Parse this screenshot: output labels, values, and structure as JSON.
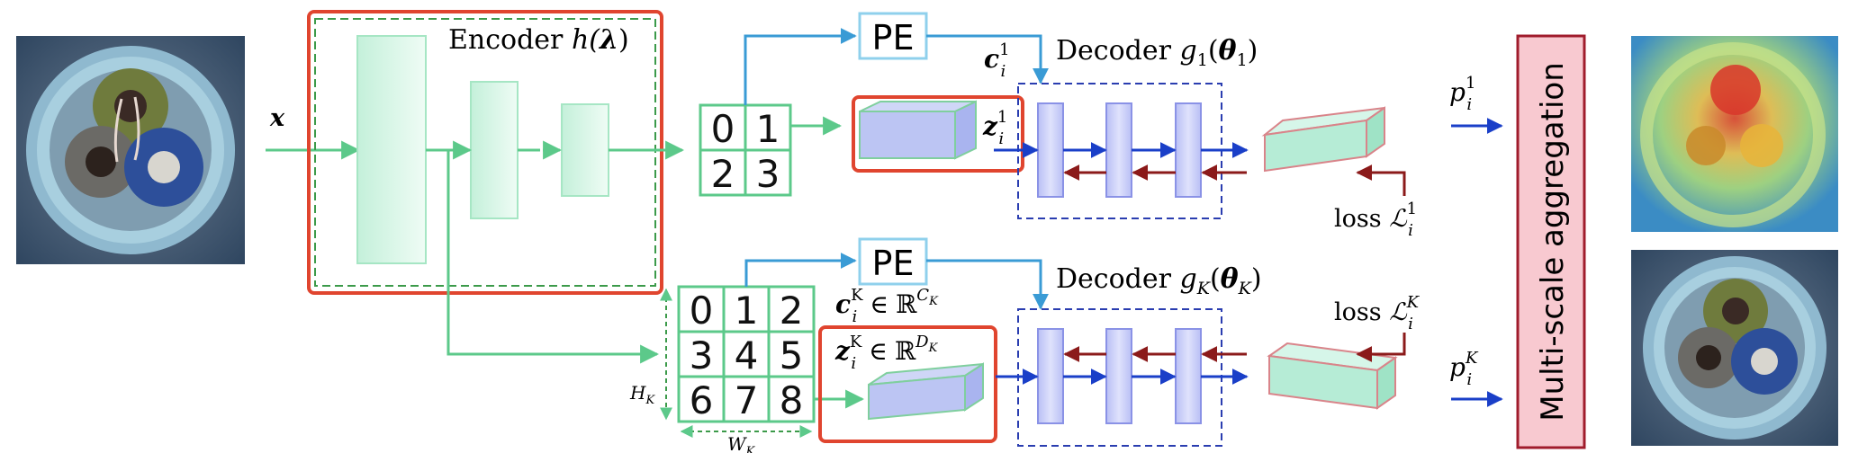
{
  "input_symbol": "x",
  "encoder": {
    "label": "Encoder",
    "func": "h(",
    "param": "λ",
    "close": ")"
  },
  "pe_top": "PE",
  "pe_bottom": "PE",
  "grid_top": [
    "0",
    "1",
    "2",
    "3"
  ],
  "grid_bottom": [
    "0",
    "1",
    "2",
    "3",
    "4",
    "5",
    "6",
    "7",
    "8"
  ],
  "grid_dims": {
    "h_main": "H",
    "h_sub": "K",
    "w_main": "W",
    "w_sub": "K"
  },
  "decoder_top": {
    "label": "Decoder",
    "g": "g",
    "g_sub": "1",
    "theta_sub": "1"
  },
  "decoder_bottom": {
    "label": "Decoder",
    "g": "g",
    "g_sub": "K",
    "theta_sub": "K"
  },
  "c_top": {
    "main": "c",
    "sup": "1",
    "sub": "i"
  },
  "z_top": {
    "main": "z",
    "sup": "1",
    "sub": "i"
  },
  "c_bottom": {
    "main": "c",
    "sup": "K",
    "sub": "i",
    "in": "∈",
    "space": "ℝ",
    "dim": "C",
    "dim_sub": "K"
  },
  "z_bottom": {
    "main": "z",
    "sup": "K",
    "sub": "i",
    "in": "∈",
    "space": "ℝ",
    "dim": "D",
    "dim_sub": "K"
  },
  "loss_top": {
    "word": "loss",
    "sym": "ℒ",
    "sup": "1",
    "sub": "i"
  },
  "loss_bottom": {
    "word": "loss",
    "sym": "ℒ",
    "sup": "K",
    "sub": "i"
  },
  "p_top": {
    "main": "p",
    "sup": "1",
    "sub": "i"
  },
  "p_bottom": {
    "main": "p",
    "sup": "K",
    "sub": "i"
  },
  "aggregation_label": "Multi-scale aggregation",
  "colors": {
    "red_frame": "#e0452f",
    "green": "#5cc98a",
    "green_fill": "#d8f5e6",
    "blue_arrow": "#1a3fc8",
    "pe_arrow": "#3a9bd5",
    "dark_red": "#8b1a1a",
    "dashed_blue": "#2a3db0",
    "decoder_block": "#c9cdf7",
    "output_block": "#b6ecd6",
    "aggregation_fill": "#f8c9d0",
    "aggregation_border": "#a01c2c"
  }
}
